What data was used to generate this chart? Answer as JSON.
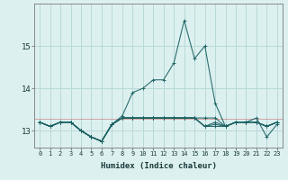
{
  "xlabel": "Humidex (Indice chaleur)",
  "background_color": "#dcf0f0",
  "grid_color": "#b8d8d8",
  "line_color": "#1a6060",
  "x_data": [
    0,
    1,
    2,
    3,
    4,
    5,
    6,
    7,
    8,
    9,
    10,
    11,
    12,
    13,
    14,
    15,
    16,
    17,
    18,
    19,
    20,
    21,
    22,
    23
  ],
  "series": [
    [
      13.2,
      13.1,
      13.2,
      13.2,
      13.0,
      12.85,
      12.75,
      13.15,
      13.35,
      13.9,
      14.0,
      14.2,
      14.2,
      14.6,
      15.6,
      14.7,
      15.0,
      13.65,
      13.1,
      13.2,
      13.2,
      13.3,
      12.85,
      13.15
    ],
    [
      13.2,
      13.1,
      13.2,
      13.2,
      13.0,
      12.85,
      12.75,
      13.15,
      13.3,
      13.3,
      13.3,
      13.3,
      13.3,
      13.3,
      13.3,
      13.3,
      13.3,
      13.3,
      13.1,
      13.2,
      13.2,
      13.2,
      13.1,
      13.2
    ],
    [
      13.2,
      13.1,
      13.2,
      13.2,
      13.0,
      12.85,
      12.75,
      13.15,
      13.3,
      13.3,
      13.3,
      13.3,
      13.3,
      13.3,
      13.3,
      13.3,
      13.1,
      13.2,
      13.1,
      13.2,
      13.2,
      13.2,
      13.1,
      13.2
    ],
    [
      13.2,
      13.1,
      13.2,
      13.2,
      13.0,
      12.85,
      12.75,
      13.15,
      13.3,
      13.3,
      13.3,
      13.3,
      13.3,
      13.3,
      13.3,
      13.3,
      13.1,
      13.15,
      13.1,
      13.2,
      13.2,
      13.2,
      13.1,
      13.2
    ],
    [
      13.2,
      13.1,
      13.2,
      13.2,
      13.0,
      12.85,
      12.75,
      13.15,
      13.3,
      13.3,
      13.3,
      13.3,
      13.3,
      13.3,
      13.3,
      13.3,
      13.1,
      13.1,
      13.1,
      13.2,
      13.2,
      13.2,
      13.1,
      13.2
    ]
  ],
  "ylim": [
    12.6,
    16.0
  ],
  "yticks": [
    13,
    14,
    15
  ],
  "xlim": [
    -0.5,
    23.5
  ],
  "red_line_y": 13.28
}
